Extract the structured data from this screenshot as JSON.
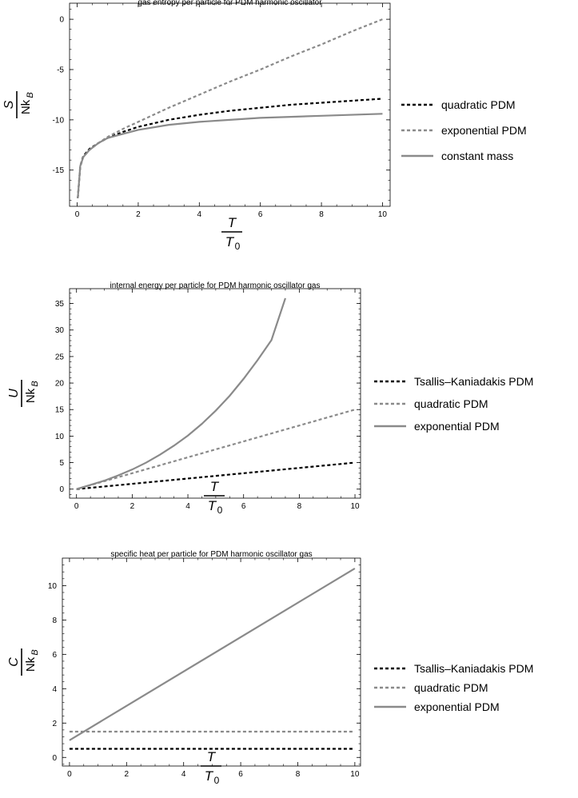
{
  "colors": {
    "black": "#000000",
    "gray": "#8a8a8a",
    "frame": "#000000"
  },
  "chart_data": [
    {
      "type": "line",
      "title": "gas entropy per particle for PDM harmonic oscillator",
      "xlabel": {
        "numerator": "T",
        "denominator_base": "T",
        "denominator_sub": "0"
      },
      "ylabel": {
        "numerator": "S",
        "denominator_base": "Nk",
        "denominator_sub": "B"
      },
      "xlim": [
        -0.25,
        10.25
      ],
      "ylim": [
        -18.6,
        1.6
      ],
      "xticks": [
        0,
        2,
        4,
        6,
        8,
        10
      ],
      "yticks": [
        0,
        -5,
        -10,
        -15
      ],
      "series": [
        {
          "name": "quadratic PDM",
          "style": "dashed",
          "color": "#000000",
          "x": [
            0.02,
            0.1,
            0.2,
            0.4,
            0.7,
            1,
            1.5,
            2,
            3,
            4,
            5,
            6,
            7,
            8,
            9,
            10
          ],
          "y": [
            -17.8,
            -14.6,
            -13.6,
            -12.9,
            -12.3,
            -11.8,
            -11.2,
            -10.7,
            -10.0,
            -9.5,
            -9.1,
            -8.8,
            -8.5,
            -8.3,
            -8.1,
            -7.9
          ]
        },
        {
          "name": "exponential PDM",
          "style": "dashed",
          "color": "#8a8a8a",
          "x": [
            0.02,
            0.1,
            0.2,
            0.4,
            0.7,
            1,
            1.5,
            2,
            3,
            4,
            5,
            6,
            7,
            8,
            9,
            10
          ],
          "y": [
            -17.8,
            -14.7,
            -13.7,
            -13.0,
            -12.3,
            -11.7,
            -10.9,
            -10.2,
            -8.8,
            -7.5,
            -6.2,
            -5.0,
            -3.7,
            -2.5,
            -1.2,
            0.0
          ]
        },
        {
          "name": "constant mass",
          "style": "solid",
          "color": "#8a8a8a",
          "x": [
            0.02,
            0.1,
            0.2,
            0.4,
            0.7,
            1,
            1.5,
            2,
            3,
            4,
            5,
            6,
            7,
            8,
            9,
            10
          ],
          "y": [
            -17.8,
            -14.6,
            -13.7,
            -13.0,
            -12.3,
            -11.8,
            -11.4,
            -11.0,
            -10.5,
            -10.2,
            -10.0,
            -9.8,
            -9.7,
            -9.6,
            -9.5,
            -9.4
          ]
        }
      ]
    },
    {
      "type": "line",
      "title": "internal energy per particle for PDM harmonic oscillator gas",
      "xlabel": {
        "numerator": "T",
        "denominator_base": "T",
        "denominator_sub": "0"
      },
      "ylabel": {
        "numerator": "U",
        "denominator_base": "Nk",
        "denominator_sub": "B"
      },
      "xlim": [
        -0.25,
        10.2
      ],
      "ylim": [
        -1.7,
        37.8
      ],
      "xticks": [
        0,
        2,
        4,
        6,
        8,
        10
      ],
      "yticks": [
        0,
        5,
        10,
        15,
        20,
        25,
        30,
        35
      ],
      "series": [
        {
          "name": "Tsallis–Kaniadakis PDM",
          "style": "dashed",
          "color": "#000000",
          "x": [
            0,
            10
          ],
          "y": [
            0,
            5
          ]
        },
        {
          "name": "quadratic PDM",
          "style": "dashed",
          "color": "#8a8a8a",
          "x": [
            0,
            1,
            2,
            3,
            4,
            5,
            6,
            7,
            8,
            9,
            10
          ],
          "y": [
            0,
            1.5,
            3.0,
            4.5,
            6.0,
            7.5,
            9.0,
            10.5,
            12.0,
            13.5,
            15.0
          ]
        },
        {
          "name": "exponential PDM",
          "style": "solid",
          "color": "#8a8a8a",
          "x": [
            0,
            0.5,
            1,
            1.5,
            2,
            2.5,
            3,
            3.5,
            4,
            4.5,
            5,
            5.5,
            6,
            6.5,
            7,
            7.5
          ],
          "y": [
            0,
            0.8,
            1.6,
            2.6,
            3.7,
            5.0,
            6.5,
            8.2,
            10.1,
            12.3,
            14.8,
            17.6,
            20.8,
            24.3,
            28.1,
            36.0
          ]
        }
      ]
    },
    {
      "type": "line",
      "title": "specific heat per particle for PDM harmonic oscillator gas",
      "xlabel": {
        "numerator": "T",
        "denominator_base": "T",
        "denominator_sub": "0"
      },
      "ylabel": {
        "numerator": "C",
        "denominator_base": "Nk",
        "denominator_sub": "B"
      },
      "xlim": [
        -0.25,
        10.2
      ],
      "ylim": [
        -0.5,
        11.6
      ],
      "xticks": [
        0,
        2,
        4,
        6,
        8,
        10
      ],
      "yticks": [
        0,
        2,
        4,
        6,
        8,
        10
      ],
      "series": [
        {
          "name": "Tsallis–Kaniadakis PDM",
          "style": "dashed",
          "color": "#000000",
          "x": [
            0,
            10
          ],
          "y": [
            0.5,
            0.5
          ]
        },
        {
          "name": "quadratic PDM",
          "style": "dashed",
          "color": "#8a8a8a",
          "x": [
            0,
            10
          ],
          "y": [
            1.5,
            1.5
          ]
        },
        {
          "name": "exponential PDM",
          "style": "solid",
          "color": "#8a8a8a",
          "x": [
            0,
            10
          ],
          "y": [
            1.0,
            11.0
          ]
        }
      ]
    }
  ]
}
